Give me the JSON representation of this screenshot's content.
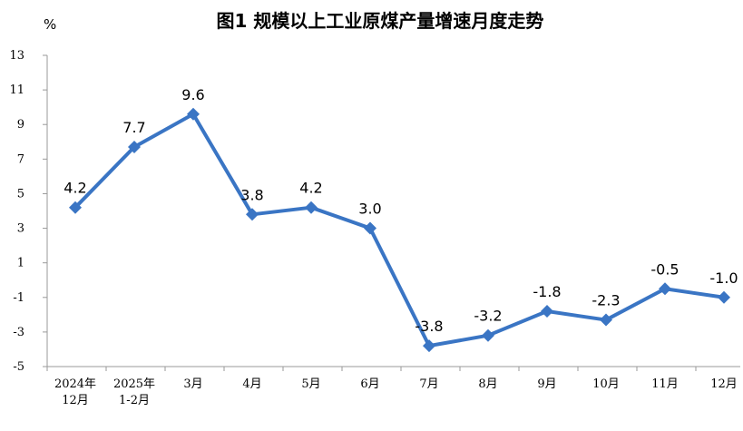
{
  "chart_data": {
    "type": "line",
    "title": "图1  规模以上工业原煤产量增速月度走势",
    "ylabel": "%",
    "xlabel": "",
    "categories": [
      [
        "2024年",
        "12月"
      ],
      [
        "2025年",
        "1-2月"
      ],
      [
        "3月"
      ],
      [
        "4月"
      ],
      [
        "5月"
      ],
      [
        "6月"
      ],
      [
        "7月"
      ],
      [
        "8月"
      ],
      [
        "9月"
      ],
      [
        "10月"
      ],
      [
        "11月"
      ],
      [
        "12月"
      ]
    ],
    "values": [
      4.2,
      7.7,
      9.6,
      3.8,
      4.2,
      3.0,
      -3.8,
      -3.2,
      -1.8,
      -2.3,
      -0.5,
      -1.0
    ],
    "data_labels": [
      "4.2",
      "7.7",
      "9.6",
      "3.8",
      "4.2",
      "3.0",
      "-3.8",
      "-3.2",
      "-1.8",
      "-2.3",
      "-0.5",
      "-1.0"
    ],
    "ylim": [
      -5,
      13
    ],
    "yticks": [
      13,
      11,
      9,
      7,
      5,
      3,
      1,
      -1,
      -3,
      -5
    ],
    "grid": false,
    "legend": "none",
    "colors": {
      "series": "#3a75c4",
      "axis": "#999999"
    }
  }
}
